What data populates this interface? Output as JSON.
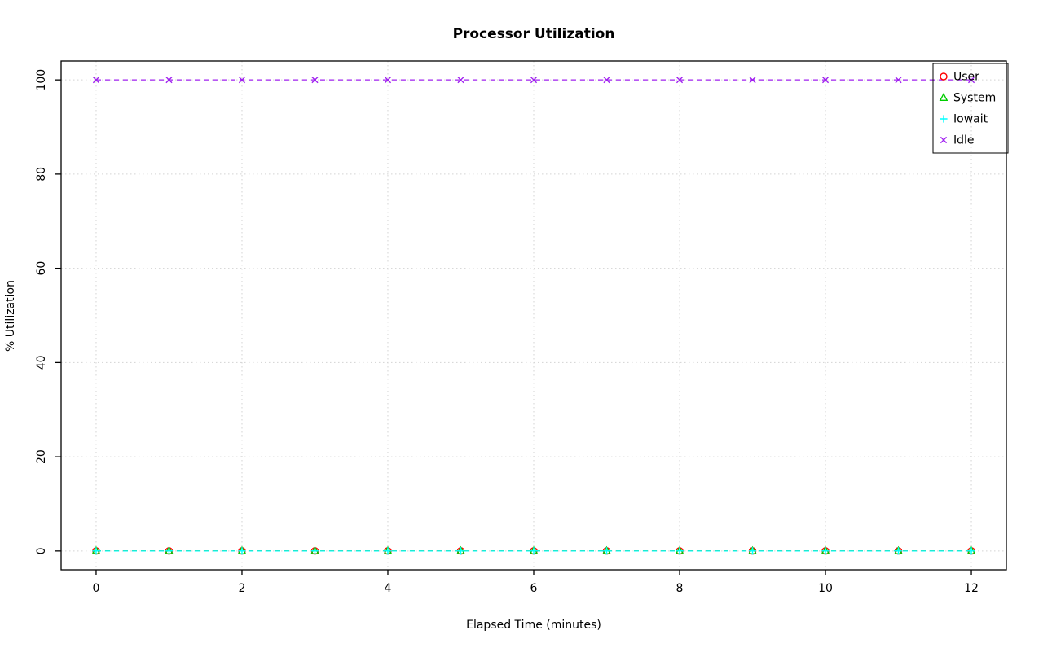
{
  "chart_data": {
    "type": "line",
    "title": "Processor Utilization",
    "xlabel": "Elapsed Time (minutes)",
    "ylabel": "% Utilization",
    "xlim": [
      0,
      12
    ],
    "ylim": [
      0,
      100
    ],
    "xticks": [
      0,
      2,
      4,
      6,
      8,
      10,
      12
    ],
    "yticks": [
      0,
      20,
      40,
      60,
      80,
      100
    ],
    "grid": true,
    "grid_color": "#D3D3D3",
    "axis_color": "#000000",
    "legend_position": "top-right",
    "x": [
      0,
      1,
      2,
      3,
      4,
      5,
      6,
      7,
      8,
      9,
      10,
      11,
      12
    ],
    "series": [
      {
        "name": "User",
        "color": "#FF0000",
        "marker": "circle",
        "line_style": "dashed",
        "values": [
          0,
          0,
          0,
          0,
          0,
          0,
          0,
          0,
          0,
          0,
          0,
          0,
          0
        ]
      },
      {
        "name": "System",
        "color": "#00CD00",
        "marker": "triangle",
        "line_style": "dashed",
        "values": [
          0,
          0,
          0,
          0,
          0,
          0,
          0,
          0,
          0,
          0,
          0,
          0,
          0
        ]
      },
      {
        "name": "Iowait",
        "color": "#00FFFF",
        "marker": "plus",
        "line_style": "dashed",
        "values": [
          0,
          0,
          0,
          0,
          0,
          0,
          0,
          0,
          0,
          0,
          0,
          0,
          0
        ]
      },
      {
        "name": "Idle",
        "color": "#A020F0",
        "marker": "x",
        "line_style": "dashed",
        "values": [
          100,
          100,
          100,
          100,
          100,
          100,
          100,
          100,
          100,
          100,
          100,
          100,
          100
        ]
      }
    ]
  }
}
